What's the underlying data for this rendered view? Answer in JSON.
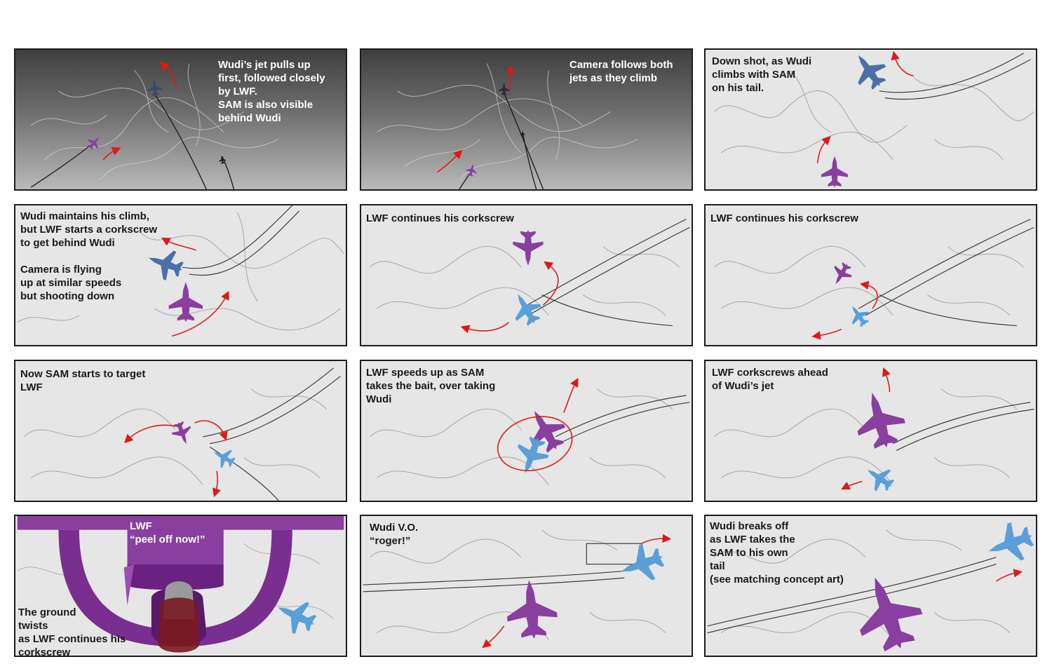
{
  "colors": {
    "wudi_jet": "#8a3fa0",
    "lwf_jet": "#5a9fd8",
    "motion_arrow": "#e01818",
    "panel_border": "#1c1c1c",
    "panel_background": "#e6e6e6"
  },
  "panels": [
    {
      "caption": "Wudi’s jet pulls up\nfirst, followed closely\nby LWF.\nSAM is also visible\nbehind Wudi"
    },
    {
      "caption": "Camera follows both\njets as they climb"
    },
    {
      "caption": "Down shot, as Wudi\nclimbs with SAM\non his tail."
    },
    {
      "caption": "Wudi maintains his climb,\nbut LWF starts a corkscrew\nto get behind Wudi\n\nCamera is flying\nup at similar speeds\nbut shooting down"
    },
    {
      "caption": "LWF continues his corkscrew"
    },
    {
      "caption": "LWF continues his corkscrew"
    },
    {
      "caption": "Now SAM starts to target\nLWF"
    },
    {
      "caption": "LWF speeds up as SAM\ntakes the bait, over taking\nWudi"
    },
    {
      "caption": "LWF corkscrews ahead\nof Wudi’s jet"
    },
    {
      "caption": "LWF\n“peel off now!”",
      "caption2": "The ground\ntwists\nas LWF continues his\ncorkscrew"
    },
    {
      "caption": "Wudi V.O.\n“roger!”"
    },
    {
      "caption": "Wudi breaks off\nas LWF takes the\nSAM to his own\ntail\n(see matching concept art)"
    }
  ]
}
